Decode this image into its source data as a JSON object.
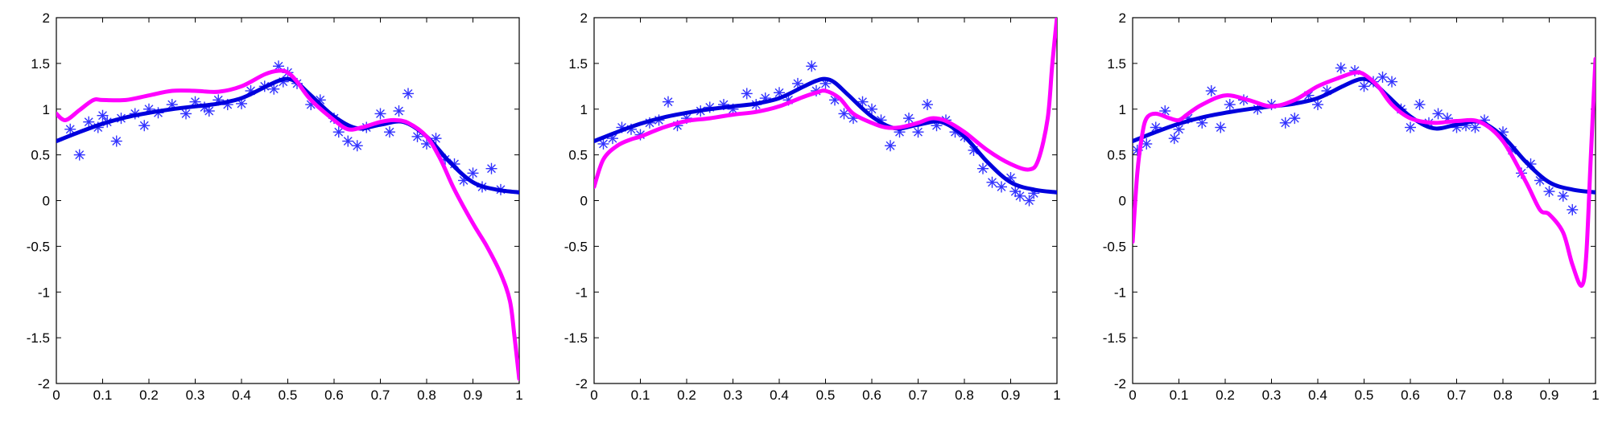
{
  "chart_data": [
    {
      "type": "scatter",
      "xlim": [
        0,
        1
      ],
      "ylim": [
        -2,
        2
      ],
      "grid": false,
      "xticks": [
        "0",
        "0.1",
        "0.2",
        "0.3",
        "0.4",
        "0.5",
        "0.6",
        "0.7",
        "0.8",
        "0.9",
        "1"
      ],
      "yticks": [
        "2",
        "1.5",
        "1",
        "0.5",
        "0",
        "-0.5",
        "-1",
        "-1.5",
        "-2"
      ],
      "series": [
        {
          "kind": "scatter",
          "marker": "asterisk",
          "color": "#3333ff",
          "x": [
            0.03,
            0.05,
            0.07,
            0.09,
            0.1,
            0.11,
            0.13,
            0.14,
            0.17,
            0.19,
            0.2,
            0.22,
            0.25,
            0.28,
            0.3,
            0.32,
            0.33,
            0.35,
            0.37,
            0.4,
            0.42,
            0.45,
            0.47,
            0.48,
            0.49,
            0.5,
            0.52,
            0.55,
            0.57,
            0.6,
            0.61,
            0.63,
            0.65,
            0.67,
            0.7,
            0.72,
            0.74,
            0.76,
            0.78,
            0.8,
            0.82,
            0.84,
            0.86,
            0.88,
            0.9,
            0.92,
            0.94,
            0.96
          ],
          "y": [
            0.78,
            0.5,
            0.86,
            0.8,
            0.93,
            0.86,
            0.65,
            0.9,
            0.95,
            0.82,
            1.0,
            0.96,
            1.05,
            0.95,
            1.08,
            1.02,
            0.98,
            1.1,
            1.05,
            1.06,
            1.2,
            1.25,
            1.22,
            1.47,
            1.3,
            1.4,
            1.28,
            1.05,
            1.1,
            0.9,
            0.75,
            0.65,
            0.6,
            0.8,
            0.95,
            0.75,
            0.98,
            1.17,
            0.7,
            0.62,
            0.68,
            0.45,
            0.4,
            0.22,
            0.3,
            0.15,
            0.35,
            0.12
          ]
        },
        {
          "kind": "line",
          "color": "#0000dd",
          "x": [
            0,
            0.05,
            0.1,
            0.15,
            0.2,
            0.25,
            0.3,
            0.35,
            0.4,
            0.45,
            0.48,
            0.5,
            0.52,
            0.55,
            0.6,
            0.65,
            0.7,
            0.75,
            0.8,
            0.85,
            0.9,
            0.95,
            1
          ],
          "y": [
            0.65,
            0.75,
            0.84,
            0.91,
            0.96,
            1.0,
            1.03,
            1.06,
            1.12,
            1.24,
            1.31,
            1.33,
            1.29,
            1.15,
            0.92,
            0.79,
            0.83,
            0.86,
            0.7,
            0.42,
            0.2,
            0.12,
            0.09
          ]
        },
        {
          "kind": "line",
          "color": "#ff00ff",
          "x": [
            0,
            0.02,
            0.05,
            0.08,
            0.1,
            0.15,
            0.2,
            0.25,
            0.3,
            0.35,
            0.4,
            0.45,
            0.48,
            0.5,
            0.52,
            0.55,
            0.6,
            0.63,
            0.66,
            0.7,
            0.73,
            0.76,
            0.8,
            0.83,
            0.86,
            0.9,
            0.93,
            0.96,
            0.98,
            0.99,
            1
          ],
          "y": [
            0.95,
            0.88,
            0.99,
            1.1,
            1.1,
            1.1,
            1.15,
            1.2,
            1.2,
            1.19,
            1.25,
            1.38,
            1.42,
            1.4,
            1.3,
            1.1,
            0.88,
            0.78,
            0.8,
            0.86,
            0.88,
            0.85,
            0.7,
            0.45,
            0.12,
            -0.25,
            -0.5,
            -0.8,
            -1.1,
            -1.5,
            -1.95
          ]
        }
      ]
    },
    {
      "type": "scatter",
      "xlim": [
        0,
        1
      ],
      "ylim": [
        -2,
        2
      ],
      "grid": false,
      "xticks": [
        "0",
        "0.1",
        "0.2",
        "0.3",
        "0.4",
        "0.5",
        "0.6",
        "0.7",
        "0.8",
        "0.9",
        "1"
      ],
      "yticks": [
        "2",
        "1.5",
        "1",
        "0.5",
        "0",
        "-0.5",
        "-1",
        "-1.5",
        "-2"
      ],
      "series": [
        {
          "kind": "scatter",
          "marker": "asterisk",
          "color": "#3333ff",
          "x": [
            0.02,
            0.04,
            0.06,
            0.08,
            0.1,
            0.12,
            0.14,
            0.16,
            0.18,
            0.2,
            0.23,
            0.25,
            0.28,
            0.3,
            0.33,
            0.35,
            0.37,
            0.4,
            0.42,
            0.44,
            0.47,
            0.48,
            0.5,
            0.52,
            0.54,
            0.56,
            0.58,
            0.6,
            0.62,
            0.64,
            0.66,
            0.68,
            0.7,
            0.72,
            0.74,
            0.76,
            0.78,
            0.8,
            0.82,
            0.84,
            0.86,
            0.88,
            0.9,
            0.91,
            0.92,
            0.94,
            0.95
          ],
          "y": [
            0.62,
            0.68,
            0.8,
            0.78,
            0.72,
            0.85,
            0.88,
            1.08,
            0.82,
            0.9,
            0.98,
            1.02,
            1.05,
            1.0,
            1.17,
            1.05,
            1.12,
            1.18,
            1.1,
            1.28,
            1.47,
            1.2,
            1.28,
            1.1,
            0.95,
            0.9,
            1.08,
            1.0,
            0.88,
            0.6,
            0.75,
            0.9,
            0.75,
            1.05,
            0.82,
            0.88,
            0.75,
            0.7,
            0.55,
            0.35,
            0.2,
            0.15,
            0.25,
            0.1,
            0.05,
            0.0,
            0.08
          ]
        },
        {
          "kind": "line",
          "color": "#0000dd",
          "x": [
            0,
            0.05,
            0.1,
            0.15,
            0.2,
            0.25,
            0.3,
            0.35,
            0.4,
            0.45,
            0.48,
            0.5,
            0.52,
            0.55,
            0.6,
            0.65,
            0.7,
            0.75,
            0.8,
            0.85,
            0.9,
            0.95,
            1
          ],
          "y": [
            0.65,
            0.75,
            0.84,
            0.91,
            0.96,
            1.0,
            1.03,
            1.06,
            1.12,
            1.24,
            1.31,
            1.33,
            1.29,
            1.15,
            0.92,
            0.79,
            0.83,
            0.86,
            0.7,
            0.42,
            0.2,
            0.12,
            0.09
          ]
        },
        {
          "kind": "line",
          "color": "#ff00ff",
          "x": [
            0,
            0.02,
            0.05,
            0.08,
            0.1,
            0.15,
            0.2,
            0.25,
            0.3,
            0.35,
            0.4,
            0.45,
            0.48,
            0.5,
            0.53,
            0.56,
            0.6,
            0.63,
            0.66,
            0.7,
            0.73,
            0.76,
            0.8,
            0.85,
            0.9,
            0.94,
            0.96,
            0.98,
            0.99,
            1
          ],
          "y": [
            0.15,
            0.45,
            0.6,
            0.67,
            0.7,
            0.8,
            0.87,
            0.9,
            0.94,
            0.97,
            1.03,
            1.13,
            1.18,
            1.2,
            1.12,
            0.95,
            0.85,
            0.8,
            0.8,
            0.85,
            0.9,
            0.87,
            0.75,
            0.55,
            0.4,
            0.34,
            0.45,
            0.9,
            1.5,
            2.0
          ]
        }
      ]
    },
    {
      "type": "scatter",
      "xlim": [
        0,
        1
      ],
      "ylim": [
        -2,
        2
      ],
      "grid": false,
      "xticks": [
        "0",
        "0.1",
        "0.2",
        "0.3",
        "0.4",
        "0.5",
        "0.6",
        "0.7",
        "0.8",
        "0.9",
        "1"
      ],
      "yticks": [
        "2",
        "1.5",
        "1",
        "0.5",
        "0",
        "-0.5",
        "-1",
        "-1.5",
        "-2"
      ],
      "series": [
        {
          "kind": "scatter",
          "marker": "asterisk",
          "color": "#3333ff",
          "x": [
            0.01,
            0.03,
            0.05,
            0.07,
            0.09,
            0.1,
            0.12,
            0.15,
            0.17,
            0.19,
            0.21,
            0.24,
            0.27,
            0.3,
            0.33,
            0.35,
            0.38,
            0.4,
            0.42,
            0.45,
            0.48,
            0.5,
            0.52,
            0.54,
            0.56,
            0.58,
            0.6,
            0.62,
            0.64,
            0.66,
            0.68,
            0.7,
            0.72,
            0.74,
            0.76,
            0.8,
            0.82,
            0.84,
            0.86,
            0.88,
            0.9,
            0.93,
            0.95
          ],
          "y": [
            0.55,
            0.62,
            0.8,
            0.98,
            0.68,
            0.78,
            0.9,
            0.85,
            1.2,
            0.8,
            1.05,
            1.1,
            1.0,
            1.05,
            0.85,
            0.9,
            1.15,
            1.05,
            1.2,
            1.45,
            1.42,
            1.25,
            1.3,
            1.35,
            1.3,
            1.0,
            0.8,
            1.05,
            0.85,
            0.95,
            0.9,
            0.8,
            0.82,
            0.8,
            0.88,
            0.75,
            0.55,
            0.3,
            0.4,
            0.22,
            0.1,
            0.05,
            -0.1
          ]
        },
        {
          "kind": "line",
          "color": "#0000dd",
          "x": [
            0,
            0.05,
            0.1,
            0.15,
            0.2,
            0.25,
            0.3,
            0.35,
            0.4,
            0.45,
            0.48,
            0.5,
            0.52,
            0.55,
            0.6,
            0.65,
            0.7,
            0.75,
            0.8,
            0.85,
            0.9,
            0.95,
            1
          ],
          "y": [
            0.65,
            0.75,
            0.84,
            0.91,
            0.96,
            1.0,
            1.03,
            1.06,
            1.12,
            1.24,
            1.31,
            1.33,
            1.29,
            1.15,
            0.92,
            0.79,
            0.83,
            0.86,
            0.7,
            0.42,
            0.2,
            0.12,
            0.09
          ]
        },
        {
          "kind": "line",
          "color": "#ff00ff",
          "x": [
            0,
            0.01,
            0.02,
            0.03,
            0.05,
            0.08,
            0.1,
            0.12,
            0.15,
            0.2,
            0.25,
            0.3,
            0.35,
            0.4,
            0.45,
            0.48,
            0.5,
            0.53,
            0.56,
            0.6,
            0.65,
            0.7,
            0.75,
            0.8,
            0.85,
            0.88,
            0.9,
            0.93,
            0.95,
            0.97,
            0.98,
            0.99,
            1
          ],
          "y": [
            -0.45,
            0.3,
            0.7,
            0.9,
            0.95,
            0.9,
            0.88,
            0.95,
            1.05,
            1.15,
            1.1,
            1.03,
            1.1,
            1.25,
            1.35,
            1.4,
            1.38,
            1.25,
            1.05,
            0.9,
            0.85,
            0.87,
            0.86,
            0.65,
            0.2,
            -0.1,
            -0.15,
            -0.35,
            -0.7,
            -0.93,
            -0.6,
            0.5,
            1.55
          ]
        }
      ]
    }
  ]
}
